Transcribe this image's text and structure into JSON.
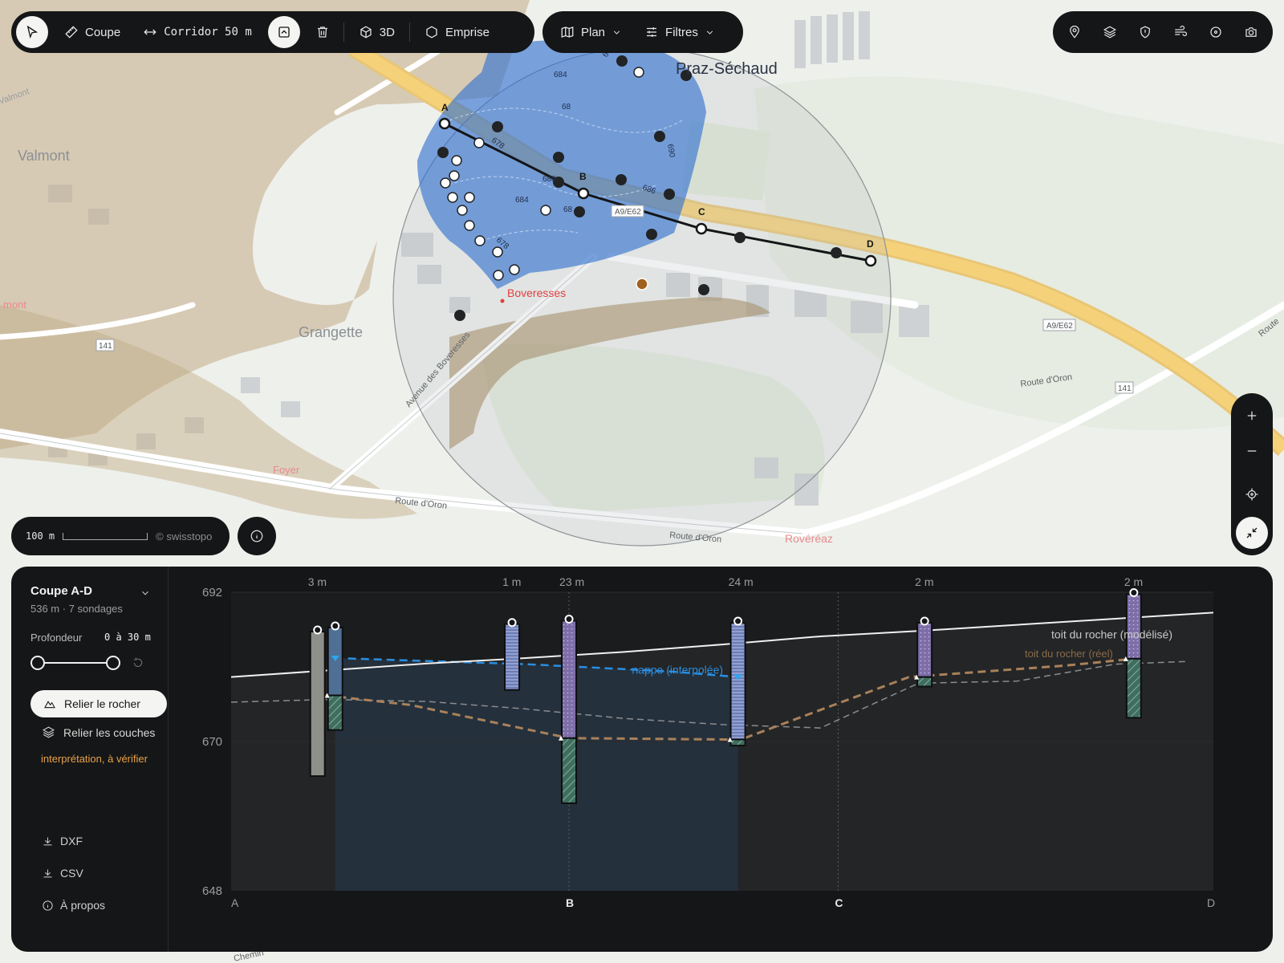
{
  "toolbar": {
    "coupe": "Coupe",
    "corridor": "Corridor 50 m",
    "view3d": "3D",
    "emprise": "Emprise",
    "plan": "Plan",
    "filtres": "Filtres"
  },
  "right_toolbar": {
    "icons": [
      "pin-icon",
      "layers-icon",
      "shield-icon",
      "wind-icon",
      "target-icon",
      "camera-icon"
    ]
  },
  "map": {
    "places": [
      {
        "name": "Praz-Séchaud",
        "style": "dark"
      },
      {
        "name": "Valmont",
        "style": "grey"
      },
      {
        "name": "Grangette",
        "style": "grey"
      },
      {
        "name": "Boveresses",
        "style": "red"
      },
      {
        "name": "Foyer",
        "style": "pink"
      },
      {
        "name": "Rovéréaz",
        "style": "pink"
      },
      {
        "name": "mont",
        "style": "pink"
      },
      {
        "name": "Valmont",
        "style": "small"
      }
    ],
    "roads": [
      "Avenue des Boveresses",
      "Route d'Oron",
      "Route d'Oron",
      "Route d'Oron",
      "Route",
      "Chemin"
    ],
    "shields": [
      "A9/E62",
      "A9/E62",
      "141",
      "141"
    ],
    "contours": [
      "678",
      "682",
      "684",
      "686",
      "688",
      "690",
      "678",
      "68",
      "686",
      "684",
      "68"
    ],
    "section_points": [
      "A",
      "B",
      "C",
      "D"
    ]
  },
  "scale": {
    "label": "100 m",
    "credit": "© swisstopo"
  },
  "profile": {
    "title": "Coupe A-D",
    "subtitle": "536 m · 7 sondages",
    "depth_label": "Profondeur",
    "depth_value": "0 à 30 m",
    "connect_rock": "Relier le rocher",
    "connect_layers": "Relier les couches",
    "warning": "interprétation, à vérifier",
    "links": {
      "dxf": "DXF",
      "csv": "CSV",
      "about": "À propos"
    },
    "depth_min": 0,
    "depth_max": 30
  },
  "chart_data": {
    "type": "line",
    "ylim": [
      648,
      692
    ],
    "yticks": [
      "692",
      "670",
      "648"
    ],
    "x_markers": [
      {
        "label": "A",
        "pos": 0.0
      },
      {
        "label": "B",
        "pos": 0.344
      },
      {
        "label": "C",
        "pos": 0.618
      },
      {
        "label": "D",
        "pos": 1.0
      }
    ],
    "labels": {
      "water": "nappe (interpolée)",
      "rock_model": "toit du rocher (modélisé)",
      "rock_real": "toit du rocher (réel)"
    },
    "terrain": [
      [
        0.0,
        679.5
      ],
      [
        0.1,
        680.5
      ],
      [
        0.2,
        681.5
      ],
      [
        0.3,
        682.3
      ],
      [
        0.4,
        683.2
      ],
      [
        0.5,
        684.3
      ],
      [
        0.6,
        685.5
      ],
      [
        0.7,
        686.3
      ],
      [
        0.8,
        687.2
      ],
      [
        0.9,
        688.1
      ],
      [
        1.0,
        689.0
      ]
    ],
    "rock_model": [
      [
        0.0,
        675.8
      ],
      [
        0.1,
        676.2
      ],
      [
        0.2,
        675.9
      ],
      [
        0.3,
        674.8
      ],
      [
        0.4,
        673.4
      ],
      [
        0.5,
        672.5
      ],
      [
        0.6,
        672.0
      ],
      [
        0.7,
        678.6
      ],
      [
        0.8,
        678.9
      ],
      [
        0.9,
        681.4
      ],
      [
        0.974,
        681.8
      ]
    ],
    "rock_real": [
      [
        0.096,
        676.8
      ],
      [
        0.182,
        675.4
      ],
      [
        0.344,
        670.5
      ],
      [
        0.502,
        670.3
      ],
      [
        0.519,
        670.3
      ],
      [
        0.69,
        679.5
      ],
      [
        0.85,
        681.2
      ],
      [
        0.919,
        682.2
      ]
    ],
    "water": [
      [
        0.106,
        682.3
      ],
      [
        0.3,
        681.4
      ],
      [
        0.45,
        680.3
      ],
      [
        0.516,
        679.5
      ]
    ],
    "boreholes": [
      {
        "pos": 0.088,
        "label": "3 m",
        "top": 686.2,
        "bottom": 664.9,
        "type": "fill",
        "rock": null
      },
      {
        "pos": 0.106,
        "label": "",
        "top": 686.8,
        "bottom": 671.7,
        "type": "water-rock",
        "rock": 676.8
      },
      {
        "pos": 0.286,
        "label": "1 m",
        "top": 687.3,
        "bottom": 677.6,
        "type": "blue",
        "rock": null
      },
      {
        "pos": 0.344,
        "label": "23 m",
        "top": 687.8,
        "bottom": 660.9,
        "type": "purple-rock",
        "rock": 670.5
      },
      {
        "pos": 0.516,
        "label": "24 m",
        "top": 687.5,
        "bottom": 669.4,
        "type": "blue-rock",
        "rock": 670.3
      },
      {
        "pos": 0.706,
        "label": "2 m",
        "top": 687.5,
        "bottom": 678.1,
        "type": "purple-rock",
        "rock": 679.5
      },
      {
        "pos": 0.919,
        "label": "2 m",
        "top": 691.7,
        "bottom": 673.5,
        "type": "purple-rock",
        "rock": 682.2
      }
    ]
  },
  "colors": {
    "panel": "#151617",
    "water": "#2a8ee0",
    "rock": "#a8815a",
    "terrain": "#f0f0f0",
    "accent_warn": "#e8a24a",
    "buffer": "#2f6fd0",
    "highway": "#f5d27a"
  }
}
